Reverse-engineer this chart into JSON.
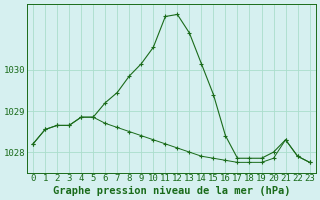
{
  "title": "Graphe pression niveau de la mer (hPa)",
  "background_color": "#d6f0f0",
  "grid_color": "#aaddcc",
  "line_color": "#1a6b1a",
  "x_values": [
    0,
    1,
    2,
    3,
    4,
    5,
    6,
    7,
    8,
    9,
    10,
    11,
    12,
    13,
    14,
    15,
    16,
    17,
    18,
    19,
    20,
    21,
    22,
    23
  ],
  "y_main": [
    1028.2,
    1028.55,
    1028.65,
    1028.65,
    1028.85,
    1028.85,
    1029.2,
    1029.45,
    1029.85,
    1030.15,
    1030.55,
    1031.3,
    1031.35,
    1030.9,
    1030.15,
    1029.4,
    1028.4,
    1027.85,
    1027.85,
    1027.85,
    1028.0,
    1028.3,
    1027.9,
    1027.75
  ],
  "y_line2": [
    1028.2,
    1028.55,
    1028.65,
    1028.65,
    1028.85,
    1028.85,
    1028.7,
    1028.6,
    1028.5,
    1028.4,
    1028.3,
    1028.2,
    1028.1,
    1028.0,
    1027.9,
    1027.85,
    1027.8,
    1027.75,
    1027.75,
    1027.75,
    1027.85,
    1028.3,
    1027.9,
    1027.75
  ],
  "ylim": [
    1027.5,
    1031.6
  ],
  "yticks": [
    1028,
    1029,
    1030
  ],
  "xticks": [
    0,
    1,
    2,
    3,
    4,
    5,
    6,
    7,
    8,
    9,
    10,
    11,
    12,
    13,
    14,
    15,
    16,
    17,
    18,
    19,
    20,
    21,
    22,
    23
  ],
  "title_fontsize": 7.5,
  "tick_fontsize": 6.5
}
